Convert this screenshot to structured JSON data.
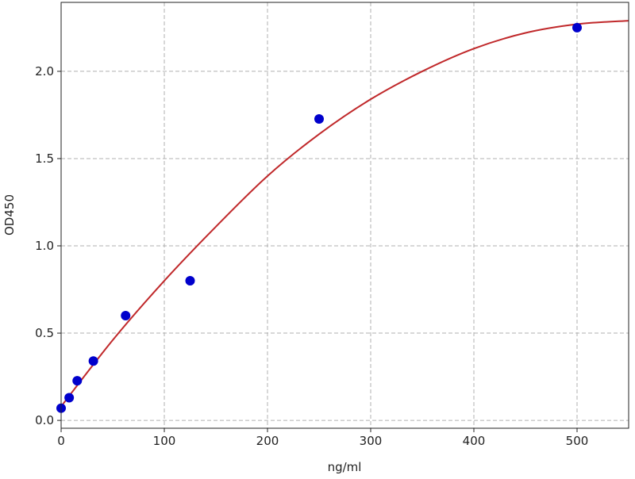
{
  "chart_data": {
    "type": "scatter",
    "title": "",
    "xlabel": "ng/ml",
    "ylabel": "OD450",
    "xlim": [
      0,
      550
    ],
    "ylim": [
      -0.045,
      2.395
    ],
    "xticks": [
      0,
      100,
      200,
      300,
      400,
      500
    ],
    "xtick_labels": [
      "0",
      "100",
      "200",
      "300",
      "400",
      "500"
    ],
    "yticks": [
      0.0,
      0.5,
      1.0,
      1.5,
      2.0
    ],
    "ytick_labels": [
      "0.0",
      "0.5",
      "1.0",
      "1.5",
      "2.0"
    ],
    "grid": true,
    "points": {
      "x": [
        0,
        7.8,
        15.6,
        31.25,
        62.5,
        125,
        250,
        500
      ],
      "y": [
        0.07,
        0.13,
        0.227,
        0.34,
        0.6,
        0.8,
        1.727,
        2.25
      ],
      "color": "#0000cc"
    },
    "fit_curve": {
      "x": [
        0,
        50,
        100,
        150,
        200,
        250,
        300,
        350,
        400,
        450,
        500,
        550
      ],
      "y": [
        0.08,
        0.46,
        0.8,
        1.11,
        1.4,
        1.64,
        1.84,
        2.0,
        2.13,
        2.22,
        2.27,
        2.29
      ],
      "color": "#c0282a"
    }
  }
}
